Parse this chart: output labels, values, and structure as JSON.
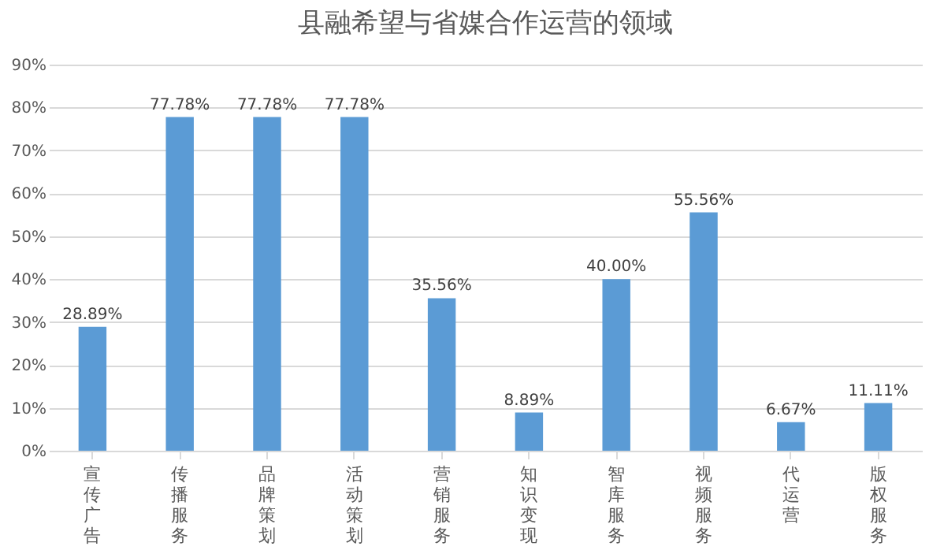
{
  "chart_data": {
    "type": "bar",
    "title": "县融希望与省媒合作运营的领域",
    "categories": [
      "宣传广告",
      "传播服务",
      "品牌策划",
      "活动策划",
      "营销服务",
      "知识变现",
      "智库服务",
      "视频服务",
      "代运营",
      "版权服务"
    ],
    "values": [
      28.89,
      77.78,
      77.78,
      77.78,
      35.56,
      8.89,
      40.0,
      55.56,
      6.67,
      11.11
    ],
    "value_labels": [
      "28.89%",
      "77.78%",
      "77.78%",
      "77.78%",
      "35.56%",
      "8.89%",
      "40.00%",
      "55.56%",
      "6.67%",
      "11.11%"
    ],
    "color": "#5b9bd5",
    "ylim": [
      0,
      90
    ],
    "yticks": [
      {
        "value": 0,
        "label": "0%"
      },
      {
        "value": 10,
        "label": "10%"
      },
      {
        "value": 20,
        "label": "20%"
      },
      {
        "value": 30,
        "label": "30%"
      },
      {
        "value": 40,
        "label": "40%"
      },
      {
        "value": 50,
        "label": "50%"
      },
      {
        "value": 60,
        "label": "60%"
      },
      {
        "value": 70,
        "label": "70%"
      },
      {
        "value": 80,
        "label": "80%"
      },
      {
        "value": 90,
        "label": "90%"
      }
    ],
    "grid": "y"
  }
}
